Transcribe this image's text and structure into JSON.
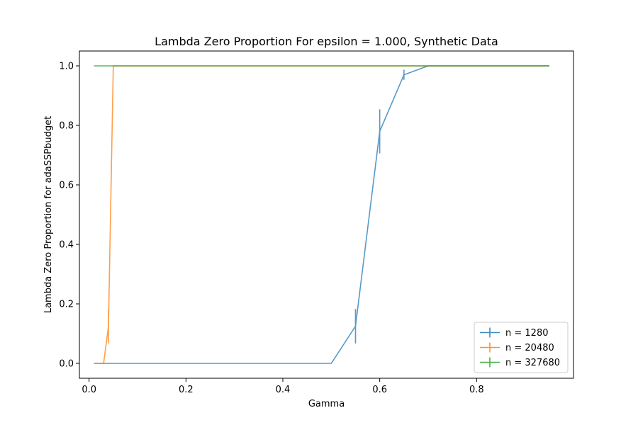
{
  "chart_data": {
    "type": "line",
    "title": "Lambda Zero Proportion For epsilon = 1.000, Synthetic Data",
    "xlabel": "Gamma",
    "ylabel": "Lambda Zero Proportion for adaSSPbudget",
    "xlim": [
      -0.02,
      1.0
    ],
    "ylim": [
      -0.05,
      1.05
    ],
    "xticks": [
      0.0,
      0.2,
      0.4,
      0.6,
      0.8
    ],
    "xtick_labels": [
      "0.0",
      "0.2",
      "0.4",
      "0.6",
      "0.8"
    ],
    "yticks": [
      0.0,
      0.2,
      0.4,
      0.6,
      0.8,
      1.0
    ],
    "ytick_labels": [
      "0.0",
      "0.2",
      "0.4",
      "0.6",
      "0.8",
      "1.0"
    ],
    "grid": false,
    "legend_position": "lower-right",
    "series": [
      {
        "name": "n = 1280",
        "color": "#1f77b4",
        "x": [
          0.01,
          0.03,
          0.04,
          0.05,
          0.1,
          0.2,
          0.3,
          0.4,
          0.5,
          0.55,
          0.6,
          0.65,
          0.7,
          0.75,
          0.8,
          0.85,
          0.9,
          0.95
        ],
        "y": [
          0.0,
          0.0,
          0.0,
          0.0,
          0.0,
          0.0,
          0.0,
          0.0,
          0.0,
          0.125,
          0.78,
          0.97,
          1.0,
          1.0,
          1.0,
          1.0,
          1.0,
          1.0
        ],
        "yerr": [
          0,
          0,
          0,
          0,
          0,
          0,
          0,
          0,
          0,
          0.058,
          0.074,
          0.017,
          0,
          0,
          0,
          0,
          0,
          0
        ]
      },
      {
        "name": "n = 20480",
        "color": "#ff7f0e",
        "x": [
          0.01,
          0.03,
          0.04,
          0.05,
          0.1,
          0.2,
          0.3,
          0.4,
          0.5,
          0.55,
          0.6,
          0.65,
          0.7,
          0.75,
          0.8,
          0.85,
          0.9,
          0.95
        ],
        "y": [
          0.0,
          0.0,
          0.125,
          1.0,
          1.0,
          1.0,
          1.0,
          1.0,
          1.0,
          1.0,
          1.0,
          1.0,
          1.0,
          1.0,
          1.0,
          1.0,
          1.0,
          1.0
        ],
        "yerr": [
          0,
          0,
          0.058,
          0,
          0,
          0,
          0,
          0,
          0,
          0,
          0,
          0,
          0,
          0,
          0,
          0,
          0,
          0
        ]
      },
      {
        "name": "n = 327680",
        "color": "#2ca02c",
        "x": [
          0.01,
          0.03,
          0.04,
          0.05,
          0.1,
          0.2,
          0.3,
          0.4,
          0.5,
          0.55,
          0.6,
          0.65,
          0.7,
          0.75,
          0.8,
          0.85,
          0.9,
          0.95
        ],
        "y": [
          1.0,
          1.0,
          1.0,
          1.0,
          1.0,
          1.0,
          1.0,
          1.0,
          1.0,
          1.0,
          1.0,
          1.0,
          1.0,
          1.0,
          1.0,
          1.0,
          1.0,
          1.0
        ],
        "yerr": [
          0,
          0,
          0,
          0,
          0,
          0,
          0,
          0,
          0,
          0,
          0,
          0,
          0,
          0,
          0,
          0,
          0,
          0
        ]
      }
    ]
  }
}
